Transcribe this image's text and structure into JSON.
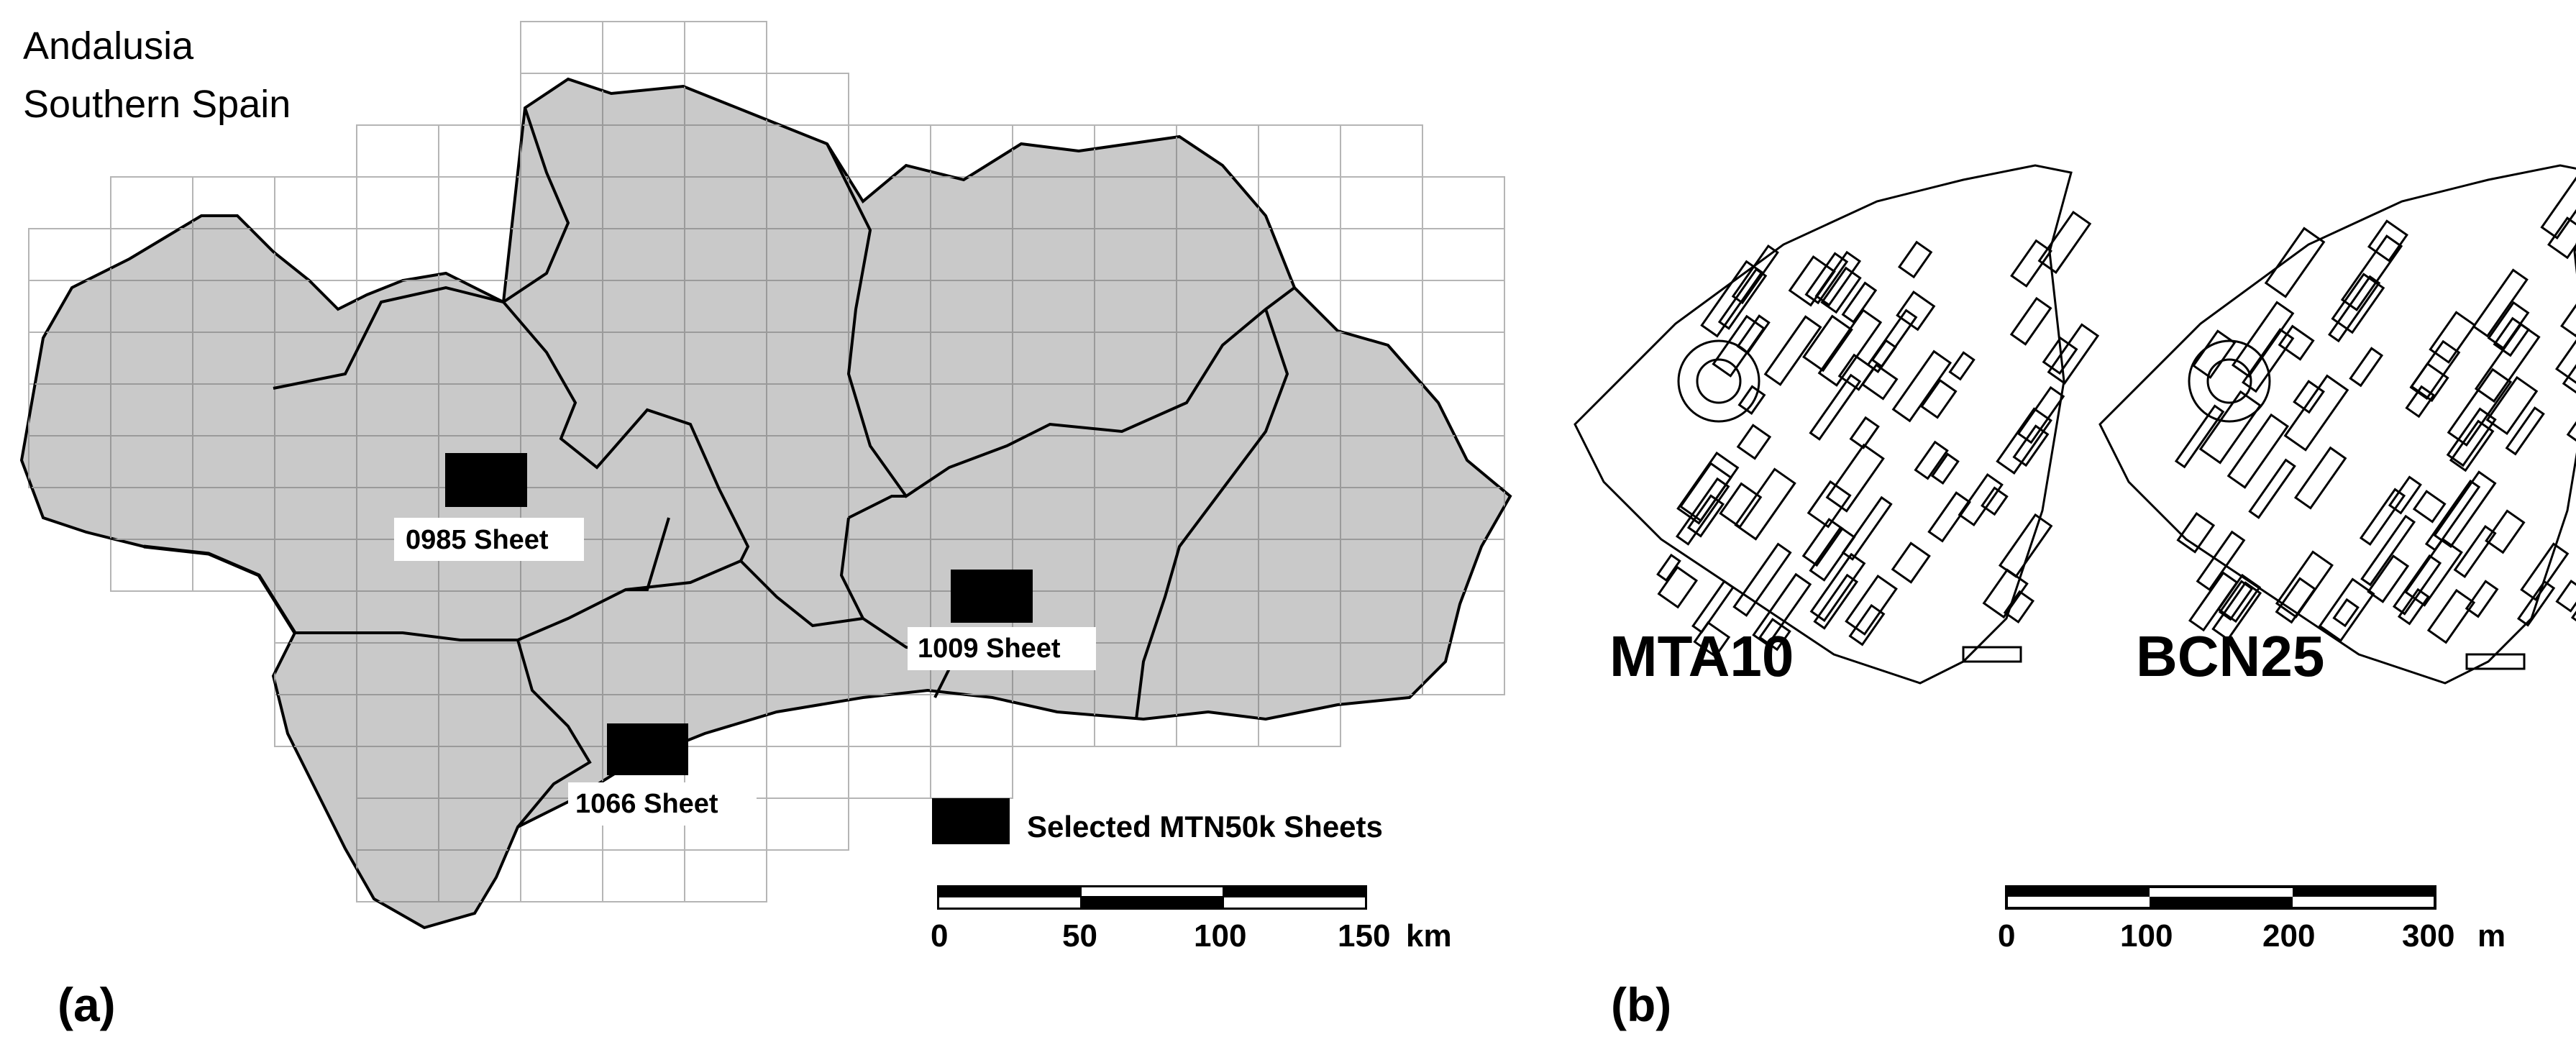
{
  "panel_a": {
    "title_line1": "Andalusia",
    "title_line2": "Southern Spain",
    "panel_label": "(a)",
    "sheets": [
      {
        "label": "0985 Sheet"
      },
      {
        "label": "1009 Sheet"
      },
      {
        "label": "1066 Sheet"
      }
    ],
    "legend_label": "Selected MTN50k Sheets",
    "scalebar": {
      "ticks": [
        "0",
        "50",
        "100",
        "150"
      ],
      "unit": "km"
    }
  },
  "panel_b": {
    "panel_label": "(b)",
    "map_labels": [
      "MTA10",
      "BCN25"
    ],
    "scalebar": {
      "ticks": [
        "0",
        "100",
        "200",
        "300"
      ],
      "unit": "m"
    }
  },
  "colors": {
    "region_fill": "#c9c9c9",
    "grid": "#b5b5b5",
    "sheet_fill": "#000000",
    "outline": "#000000"
  }
}
